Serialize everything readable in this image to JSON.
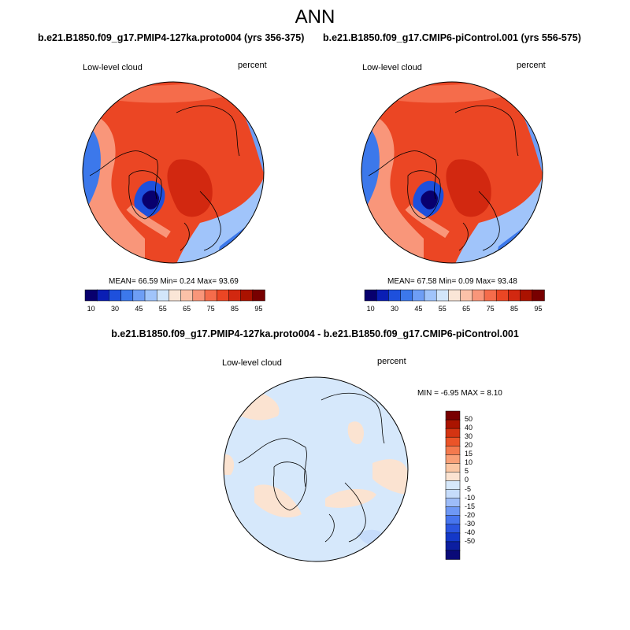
{
  "page": {
    "season": "ANN"
  },
  "colors": {
    "abs_palette": [
      "#08006e",
      "#0a1eb4",
      "#1e50dc",
      "#3c78eb",
      "#6e9ef5",
      "#a0c4fa",
      "#d2e6fa",
      "#fae6d7",
      "#fbc1a8",
      "#f9967a",
      "#f56c4b",
      "#eb4624",
      "#d22810",
      "#aa1200",
      "#780000"
    ],
    "diff_palette": [
      "#0a0a78",
      "#0c1ea0",
      "#1438c8",
      "#2b55e0",
      "#4775ee",
      "#6e98f5",
      "#9dbcf8",
      "#c6dcfb",
      "#d6e8fb",
      "#fbe3d1",
      "#fbc7a4",
      "#f9a077",
      "#f47a4e",
      "#eb5428",
      "#d43412",
      "#aa1400",
      "#780000"
    ],
    "map_border": "#000000"
  },
  "panels": [
    {
      "run_title": "b.e21.B1850.f09_g17.PMIP4-127ka.proto004 (yrs 356-375)",
      "variable": "Low-level cloud",
      "units": "percent",
      "mean_label": "MEAN=",
      "mean": "66.59",
      "min_label": "Min=",
      "min": "0.24",
      "max_label": "Max=",
      "max": "93.69",
      "colorbar_ticks": [
        "10",
        "30",
        "45",
        "55",
        "65",
        "75",
        "85",
        "95"
      ]
    },
    {
      "run_title": "b.e21.B1850.f09_g17.CMIP6-piControl.001 (yrs 556-575)",
      "variable": "Low-level cloud",
      "units": "percent",
      "mean_label": "MEAN=",
      "mean": "67.58",
      "min_label": "Min=",
      "min": "0.09",
      "max_label": "Max=",
      "max": "93.48",
      "colorbar_ticks": [
        "10",
        "30",
        "45",
        "55",
        "65",
        "75",
        "85",
        "95"
      ]
    }
  ],
  "diff": {
    "title": "b.e21.B1850.f09_g17.PMIP4-127ka.proto004 - b.e21.B1850.f09_g17.CMIP6-piControl.001",
    "variable": "Low-level cloud",
    "units": "percent",
    "min_label": "MIN =",
    "min": "-6.95",
    "max_label": "MAX =",
    "max": "8.10",
    "colorbar_ticks": [
      "50",
      "40",
      "30",
      "20",
      "15",
      "10",
      "5",
      "0",
      "-5",
      "-10",
      "-15",
      "-20",
      "-30",
      "-40",
      "-50"
    ]
  }
}
